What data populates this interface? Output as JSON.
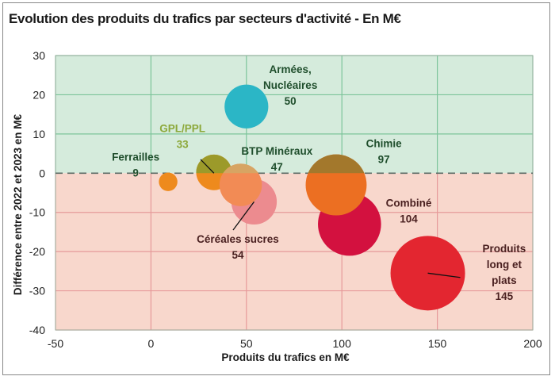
{
  "chart_data": {
    "type": "scatter",
    "subtype": "bubble",
    "title": "Evolution des produits du trafics par secteurs d'activité - En M€",
    "xlabel": "Produits du trafics en M€",
    "ylabel": "Différence entre 2022 et 2023 en M€",
    "xlim": [
      -50,
      200
    ],
    "ylim": [
      -40,
      30
    ],
    "xticks": [
      -50,
      0,
      50,
      100,
      150,
      200
    ],
    "yticks": [
      30,
      20,
      10,
      0,
      -10,
      -20,
      -30,
      -40
    ],
    "xtick_labels": [
      "-50",
      "0",
      "50",
      "100",
      "150",
      "200"
    ],
    "ytick_labels": [
      "30",
      "20",
      "10",
      "0",
      "-10",
      "-20",
      "-30",
      "-40"
    ],
    "grid": true,
    "zero_line": "dashed",
    "regions": [
      {
        "name": "positive",
        "range": [
          0,
          30
        ],
        "color": "#d5ebdc"
      },
      {
        "name": "negative",
        "range": [
          -40,
          0
        ],
        "color": "#f8d7cc"
      }
    ],
    "series": [
      {
        "name": "Ferrailles",
        "label_lines": [
          "Ferrailles",
          "9"
        ],
        "x": 9,
        "y": -2.2,
        "size": 9,
        "color": "#ee8a1d",
        "label_color": "#1f4e2c"
      },
      {
        "name": "GPL/PPL",
        "label_lines": [
          "GPL/PPL",
          "33"
        ],
        "x": 33,
        "y": 0.2,
        "size": 33,
        "color": "#ee8a1d",
        "top_color": "#9c9a2a",
        "label_color": "#8ca83a"
      },
      {
        "name": "Armées, Nucléaires",
        "label_lines": [
          "Armées,",
          "Nucléaires",
          "50"
        ],
        "x": 50,
        "y": 17,
        "size": 50,
        "color": "#2bb6c6",
        "label_color": "#1f4e2c"
      },
      {
        "name": "Céréales sucres",
        "label_lines": [
          "Céréales sucres",
          "54"
        ],
        "x": 54,
        "y": -7.3,
        "size": 54,
        "color": "#ec8b8f",
        "label_color": "#4a2020"
      },
      {
        "name": "BTP Minéraux",
        "label_lines": [
          "BTP Minéraux",
          "47"
        ],
        "x": 47,
        "y": -3,
        "size": 47,
        "color": "#f28b55",
        "top_color": "#d7a463",
        "label_color": "#1f4e2c"
      },
      {
        "name": "Combiné",
        "label_lines": [
          "Combiné",
          "104"
        ],
        "x": 104,
        "y": -13,
        "size": 104,
        "color": "#d3113f",
        "label_color": "#4a2020"
      },
      {
        "name": "Chimie",
        "label_lines": [
          "Chimie",
          "97"
        ],
        "x": 97,
        "y": -3,
        "size": 97,
        "color": "#ec6f22",
        "top_color": "#a3782c",
        "label_color": "#1f4e2c"
      },
      {
        "name": "Produits long et plats",
        "label_lines": [
          "Produits",
          "long et",
          "plats",
          "145"
        ],
        "x": 145,
        "y": -25.5,
        "size": 145,
        "color": "#e32630",
        "label_color": "#4a2020"
      }
    ]
  }
}
